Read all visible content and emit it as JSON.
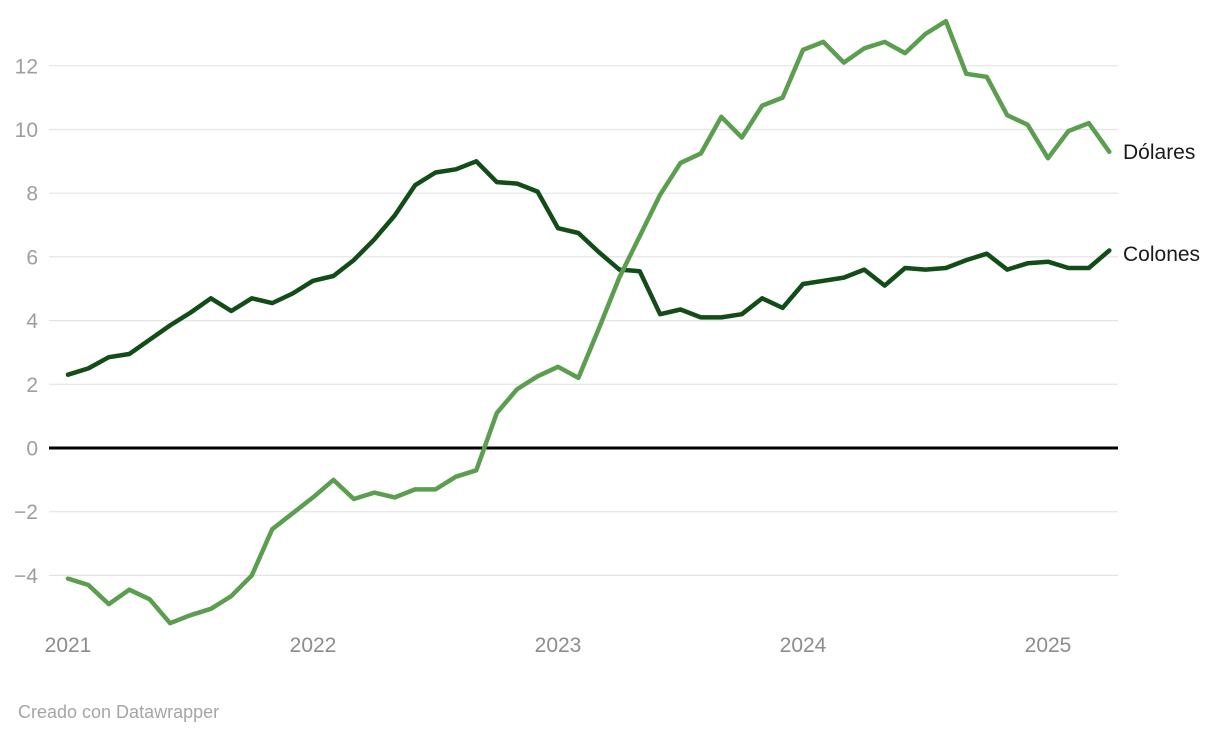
{
  "chart": {
    "series_labels": {
      "dolares": "Dólares",
      "colones": "Colones"
    }
  },
  "attribution": {
    "text": "Creado con Datawrapper"
  },
  "chart_data": {
    "type": "line",
    "title": "",
    "xlabel": "",
    "ylabel": "",
    "x_unit": "month",
    "x_tick_labels": [
      "2021",
      "2022",
      "2023",
      "2024",
      "2025"
    ],
    "x_tick_month_indices": [
      0,
      12,
      24,
      36,
      48
    ],
    "y_tick_labels": [
      "−4",
      "−2",
      "0",
      "2",
      "4",
      "6",
      "8",
      "10",
      "12"
    ],
    "y_tick_values": [
      -4,
      -2,
      0,
      2,
      4,
      6,
      8,
      10,
      12
    ],
    "ylim": [
      -6.3,
      13.7
    ],
    "grid": "horizontal",
    "zero_baseline": true,
    "legend_position": "direct-labels-right",
    "months": [
      "2021-01",
      "2021-02",
      "2021-03",
      "2021-04",
      "2021-05",
      "2021-06",
      "2021-07",
      "2021-08",
      "2021-09",
      "2021-10",
      "2021-11",
      "2021-12",
      "2022-01",
      "2022-02",
      "2022-03",
      "2022-04",
      "2022-05",
      "2022-06",
      "2022-07",
      "2022-08",
      "2022-09",
      "2022-10",
      "2022-11",
      "2022-12",
      "2023-01",
      "2023-02",
      "2023-03",
      "2023-04",
      "2023-05",
      "2023-06",
      "2023-07",
      "2023-08",
      "2023-09",
      "2023-10",
      "2023-11",
      "2023-12",
      "2024-01",
      "2024-02",
      "2024-03",
      "2024-04",
      "2024-05",
      "2024-06",
      "2024-07",
      "2024-08",
      "2024-09",
      "2024-10",
      "2024-11",
      "2024-12",
      "2025-01",
      "2025-02",
      "2025-03",
      "2025-04"
    ],
    "series": [
      {
        "name": "Colones",
        "color": "#124d18",
        "values": [
          2.3,
          2.5,
          2.85,
          2.95,
          3.4,
          3.85,
          4.25,
          4.7,
          4.3,
          4.7,
          4.55,
          4.85,
          5.25,
          5.4,
          5.9,
          6.55,
          7.3,
          8.25,
          8.65,
          8.75,
          9.0,
          8.35,
          8.3,
          8.05,
          6.9,
          6.75,
          6.15,
          5.6,
          5.55,
          4.2,
          4.35,
          4.1,
          4.1,
          4.2,
          4.7,
          4.4,
          5.15,
          5.25,
          5.35,
          5.6,
          5.1,
          5.65,
          5.6,
          5.65,
          5.9,
          6.1,
          5.6,
          5.8,
          5.85,
          5.65,
          5.65,
          6.2
        ]
      },
      {
        "name": "Dólares",
        "color": "#5c9e4f",
        "values": [
          -4.1,
          -4.3,
          -4.9,
          -4.45,
          -4.75,
          -5.5,
          -5.25,
          -5.05,
          -4.65,
          -4.0,
          -2.55,
          -2.05,
          -1.55,
          -1.0,
          -1.6,
          -1.4,
          -1.55,
          -1.3,
          -1.3,
          -0.9,
          -0.7,
          1.1,
          1.85,
          2.25,
          2.55,
          2.2,
          3.75,
          5.35,
          6.65,
          7.95,
          8.95,
          9.25,
          10.4,
          9.75,
          10.75,
          11.0,
          12.5,
          12.75,
          12.1,
          12.55,
          12.75,
          12.4,
          13.0,
          13.4,
          11.75,
          11.65,
          10.45,
          10.15,
          9.1,
          9.95,
          10.2,
          9.3
        ]
      }
    ]
  }
}
